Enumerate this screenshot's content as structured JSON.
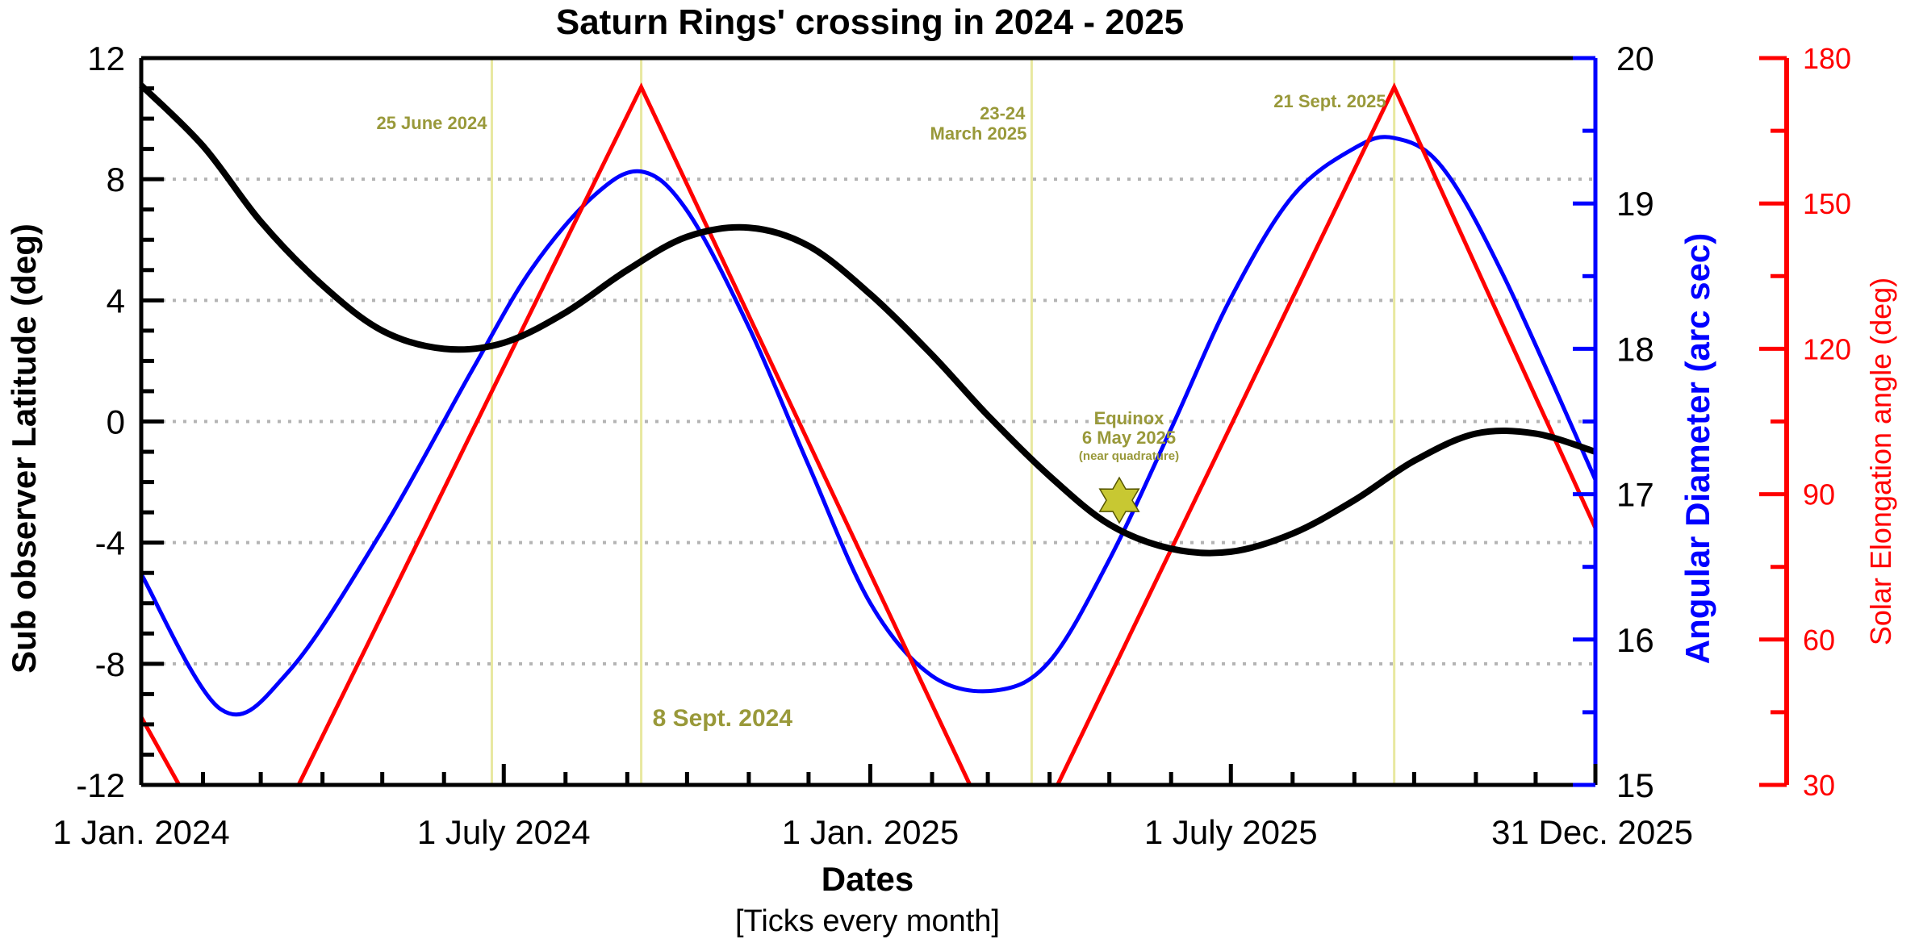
{
  "chart_data": {
    "type": "line",
    "title": "Saturn Rings' crossing in 2024 - 2025",
    "xlabel": "Dates",
    "xlabel_note": "[Ticks every month]",
    "x_tick_labels": [
      "1 Jan. 2024",
      "1 July 2024",
      "1 Jan. 2025",
      "1 July 2025",
      "31 Dec. 2025"
    ],
    "x_tick_dates": [
      "2024-01-01",
      "2024-07-01",
      "2025-01-01",
      "2025-07-01",
      "2025-12-31"
    ],
    "xlim": [
      "2024-01-01",
      "2025-12-31"
    ],
    "x_minor_ticks": "monthly",
    "colors": {
      "latitude": "#000000",
      "diameter": "#0000ff",
      "elongation": "#ff0000",
      "annotation": "#99993a",
      "event_line": "#e8e8a0",
      "grid": "#b4b4b4",
      "star": "#c8c832"
    },
    "left_axis": {
      "label": "Sub observer Latitude (deg)",
      "ylim": [
        -12,
        12
      ],
      "ticks": [
        12,
        8,
        4,
        0,
        -4,
        -8,
        -12
      ],
      "tick_labels": [
        "12",
        "8",
        "4",
        "0",
        "-4",
        "-8",
        "-12"
      ],
      "grid_at": [
        8,
        4,
        0,
        -4,
        -8
      ],
      "grid_style": "dotted"
    },
    "right_axis_1": {
      "label": "Angular Diameter (arc sec)",
      "ylim": [
        15,
        20
      ],
      "ticks": [
        15,
        16,
        17,
        18,
        19,
        20
      ],
      "tick_labels": [
        "15",
        "16",
        "17",
        "18",
        "19",
        "20"
      ]
    },
    "right_axis_2": {
      "label": "Solar Elongation angle (deg)",
      "ylim": [
        30,
        180
      ],
      "ticks": [
        30,
        60,
        90,
        120,
        150,
        180
      ],
      "tick_labels": [
        "30",
        "60",
        "90",
        "120",
        "150",
        "180"
      ]
    },
    "series": [
      {
        "name": "Sub observer Latitude",
        "axis": "left",
        "x": [
          "2024-01-01",
          "2024-02-01",
          "2024-03-01",
          "2024-04-01",
          "2024-05-01",
          "2024-06-01",
          "2024-07-01",
          "2024-08-01",
          "2024-09-01",
          "2024-10-01",
          "2024-11-01",
          "2024-12-01",
          "2025-01-01",
          "2025-02-01",
          "2025-03-01",
          "2025-04-01",
          "2025-05-01",
          "2025-06-01",
          "2025-07-01",
          "2025-08-01",
          "2025-09-01",
          "2025-10-01",
          "2025-11-01",
          "2025-12-01",
          "2025-12-31"
        ],
        "y": [
          11.1,
          9.1,
          6.6,
          4.5,
          3.0,
          2.4,
          2.6,
          3.6,
          5.0,
          6.1,
          6.4,
          5.8,
          4.2,
          2.2,
          0.2,
          -1.8,
          -3.4,
          -4.2,
          -4.3,
          -3.7,
          -2.6,
          -1.3,
          -0.4,
          -0.4,
          -1.0
        ]
      },
      {
        "name": "Angular Diameter",
        "axis": "right_1",
        "x": [
          "2024-01-01",
          "2024-02-10",
          "2024-03-15",
          "2024-05-01",
          "2024-06-15",
          "2024-07-15",
          "2024-08-15",
          "2024-09-08",
          "2024-10-01",
          "2024-11-01",
          "2024-12-01",
          "2025-01-01",
          "2025-02-01",
          "2025-03-05",
          "2025-04-01",
          "2025-05-01",
          "2025-06-01",
          "2025-07-01",
          "2025-08-01",
          "2025-09-01",
          "2025-09-21",
          "2025-10-15",
          "2025-11-15",
          "2025-12-31"
        ],
        "y": [
          16.45,
          15.52,
          15.78,
          16.75,
          17.85,
          18.55,
          19.05,
          19.22,
          18.95,
          18.15,
          17.2,
          16.25,
          15.75,
          15.65,
          15.85,
          16.55,
          17.45,
          18.35,
          19.05,
          19.38,
          19.45,
          19.25,
          18.5,
          17.1
        ]
      },
      {
        "name": "Solar Elongation angle",
        "axis": "right_2",
        "segments": [
          {
            "x": [
              "2024-01-01",
              "2024-01-20"
            ],
            "y": [
              44,
              30
            ]
          },
          {
            "x": [
              "2024-03-20",
              "2024-09-08",
              "2025-02-20"
            ],
            "y": [
              30,
              174,
              30
            ]
          },
          {
            "x": [
              "2025-04-05",
              "2025-09-21",
              "2025-12-31"
            ],
            "y": [
              30,
              174,
              83
            ]
          }
        ]
      }
    ],
    "event_lines": [
      {
        "date": "2024-06-25",
        "label": "25 June 2024"
      },
      {
        "date": "2024-09-08",
        "label": "8 Sept. 2024"
      },
      {
        "date": "2025-03-23",
        "label_lines": [
          "23-24",
          "March 2025"
        ]
      },
      {
        "date": "2025-09-21",
        "label": "21 Sept. 2025"
      }
    ],
    "equinox": {
      "date": "2025-05-06",
      "latitude": -2.6,
      "label_lines": [
        "Equinox",
        "6 May 2025",
        "(near quadrature)"
      ]
    },
    "legend": "none"
  }
}
